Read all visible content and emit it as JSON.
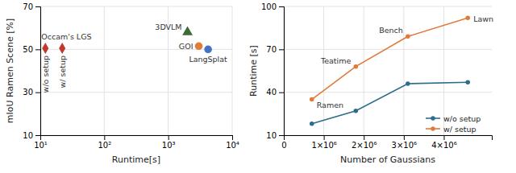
{
  "chart_data": [
    {
      "type": "scatter",
      "xlabel": "Runtime[s]",
      "ylabel": "mIoU Ramen Scene [%]",
      "log": "x",
      "xlim": [
        10,
        10000
      ],
      "xticks": [
        {
          "value": 10,
          "label": "10¹"
        },
        {
          "value": 100,
          "label": "10²"
        },
        {
          "value": 1000,
          "label": "10³"
        },
        {
          "value": 10000,
          "label": "10⁴"
        }
      ],
      "ylim": [
        10,
        70
      ],
      "yticks": [
        10,
        30,
        50,
        70
      ],
      "grid": true,
      "series": [
        {
          "color": "#c0392b",
          "marker": "diamond",
          "x": [
            12,
            22
          ],
          "values": [
            50.5,
            50.5
          ]
        },
        {
          "color": "#3d6b35",
          "marker": "triangle",
          "x": [
            2000
          ],
          "values": [
            58
          ]
        },
        {
          "color": "#e07b39",
          "marker": "circle",
          "x": [
            3000
          ],
          "values": [
            51.5
          ]
        },
        {
          "color": "#4472c4",
          "marker": "circle",
          "x": [
            4200
          ],
          "values": [
            50.0
          ]
        }
      ],
      "annotations": [
        {
          "text": "Occam's LGS",
          "x": 12,
          "y": 50.5
        },
        {
          "text": "w/o setup",
          "x": 12,
          "y": 50.5
        },
        {
          "text": "w/ setup",
          "x": 22,
          "y": 50.5
        },
        {
          "text": "3DVLM",
          "x": 2000,
          "y": 58
        },
        {
          "text": "GOI",
          "x": 3000,
          "y": 51.5
        },
        {
          "text": "LangSplat",
          "x": 4200,
          "y": 50.0
        }
      ]
    },
    {
      "type": "line",
      "xlabel": "Number of Gaussians",
      "ylabel": "Runtime [s]",
      "x": [
        700000,
        1800000,
        3100000,
        4600000
      ],
      "xlim": [
        0,
        5200000
      ],
      "xticks": [
        0,
        {
          "value": 1000000,
          "label": "1×10⁶"
        },
        {
          "value": 2000000,
          "label": "2×10⁶"
        },
        {
          "value": 3000000,
          "label": "3×10⁶"
        },
        {
          "value": 4000000,
          "label": "4×10⁶"
        }
      ],
      "ylim": [
        10,
        100
      ],
      "yticks": [
        10,
        40,
        70,
        100
      ],
      "grid": true,
      "legend": "lower right",
      "series": [
        {
          "name": "w/o setup",
          "color": "#2c6e8a",
          "marker": "circle",
          "values": [
            18,
            27,
            46,
            47
          ]
        },
        {
          "name": "w/ setup",
          "color": "#e07b39",
          "marker": "circle",
          "values": [
            35,
            58,
            79,
            92
          ]
        }
      ],
      "annotations": [
        {
          "text": "Ramen",
          "x": 700000,
          "y": 35
        },
        {
          "text": "Teatime",
          "x": 1800000,
          "y": 58
        },
        {
          "text": "Bench",
          "x": 3100000,
          "y": 79
        },
        {
          "text": "Lawn",
          "x": 4600000,
          "y": 92
        }
      ]
    }
  ]
}
